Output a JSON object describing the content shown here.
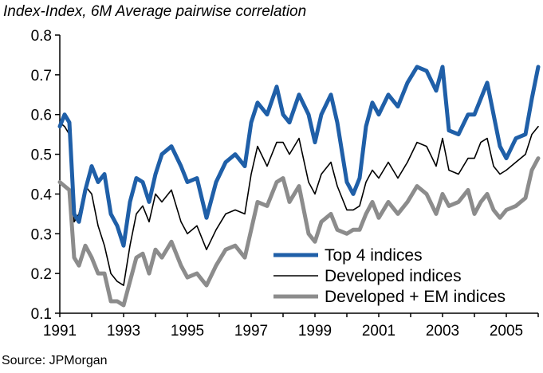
{
  "chart_data": {
    "type": "line",
    "title": "Index-Index, 6M Average pairwise correlation",
    "source": "Source: JPMorgan",
    "xlabel": "",
    "ylabel": "",
    "xlim": [
      1991.0,
      2006.0
    ],
    "ylim": [
      0.1,
      0.8
    ],
    "x_ticks": [
      "1991",
      "1993",
      "1995",
      "1997",
      "1999",
      "2001",
      "2003",
      "2005"
    ],
    "y_ticks": [
      "0.8",
      "0.7",
      "0.6",
      "0.5",
      "0.4",
      "0.3",
      "0.2",
      "0.1"
    ],
    "legend_position": "bottom-right",
    "grid": false,
    "series": [
      {
        "name": "Top 4 indices",
        "color": "#1f5fa8",
        "x": [
          1991.0,
          1991.15,
          1991.3,
          1991.45,
          1991.6,
          1991.8,
          1992.0,
          1992.2,
          1992.4,
          1992.6,
          1992.8,
          1993.0,
          1993.2,
          1993.4,
          1993.6,
          1993.8,
          1994.0,
          1994.2,
          1994.5,
          1994.8,
          1995.0,
          1995.3,
          1995.6,
          1995.9,
          1996.2,
          1996.5,
          1996.8,
          1997.0,
          1997.2,
          1997.5,
          1997.8,
          1998.0,
          1998.2,
          1998.5,
          1998.8,
          1999.0,
          1999.2,
          1999.5,
          1999.7,
          2000.0,
          2000.2,
          2000.4,
          2000.6,
          2000.8,
          2001.0,
          2001.3,
          2001.6,
          2001.9,
          2002.2,
          2002.5,
          2002.8,
          2003.0,
          2003.2,
          2003.5,
          2003.8,
          2004.0,
          2004.2,
          2004.4,
          2004.6,
          2004.8,
          2005.0,
          2005.3,
          2005.6,
          2005.8,
          2006.0
        ],
        "values": [
          0.57,
          0.6,
          0.58,
          0.35,
          0.33,
          0.41,
          0.47,
          0.43,
          0.45,
          0.35,
          0.32,
          0.27,
          0.38,
          0.44,
          0.43,
          0.38,
          0.45,
          0.5,
          0.52,
          0.47,
          0.43,
          0.44,
          0.34,
          0.43,
          0.48,
          0.5,
          0.47,
          0.58,
          0.63,
          0.6,
          0.67,
          0.6,
          0.58,
          0.65,
          0.6,
          0.53,
          0.6,
          0.65,
          0.58,
          0.43,
          0.4,
          0.44,
          0.57,
          0.63,
          0.6,
          0.65,
          0.62,
          0.68,
          0.72,
          0.71,
          0.66,
          0.72,
          0.56,
          0.55,
          0.6,
          0.6,
          0.64,
          0.68,
          0.6,
          0.52,
          0.49,
          0.54,
          0.55,
          0.64,
          0.72
        ]
      },
      {
        "name": "Developed indices",
        "color": "#000000",
        "x": [
          1991.0,
          1991.15,
          1991.3,
          1991.45,
          1991.6,
          1991.8,
          1992.0,
          1992.2,
          1992.4,
          1992.6,
          1992.8,
          1993.0,
          1993.2,
          1993.4,
          1993.6,
          1993.8,
          1994.0,
          1994.2,
          1994.5,
          1994.8,
          1995.0,
          1995.3,
          1995.6,
          1995.9,
          1996.2,
          1996.5,
          1996.8,
          1997.0,
          1997.2,
          1997.5,
          1997.8,
          1998.0,
          1998.2,
          1998.5,
          1998.8,
          1999.0,
          1999.2,
          1999.5,
          1999.7,
          2000.0,
          2000.2,
          2000.4,
          2000.6,
          2000.8,
          2001.0,
          2001.3,
          2001.6,
          2001.9,
          2002.2,
          2002.5,
          2002.8,
          2003.0,
          2003.2,
          2003.5,
          2003.8,
          2004.0,
          2004.2,
          2004.4,
          2004.6,
          2004.8,
          2005.0,
          2005.3,
          2005.6,
          2005.8,
          2006.0
        ],
        "values": [
          0.58,
          0.57,
          0.55,
          0.33,
          0.35,
          0.42,
          0.4,
          0.32,
          0.27,
          0.2,
          0.18,
          0.17,
          0.27,
          0.35,
          0.37,
          0.33,
          0.4,
          0.38,
          0.41,
          0.33,
          0.3,
          0.32,
          0.26,
          0.31,
          0.35,
          0.36,
          0.35,
          0.45,
          0.52,
          0.47,
          0.53,
          0.53,
          0.5,
          0.54,
          0.43,
          0.4,
          0.45,
          0.48,
          0.42,
          0.36,
          0.36,
          0.37,
          0.43,
          0.46,
          0.44,
          0.48,
          0.44,
          0.48,
          0.53,
          0.52,
          0.47,
          0.54,
          0.46,
          0.45,
          0.49,
          0.49,
          0.53,
          0.54,
          0.47,
          0.45,
          0.46,
          0.48,
          0.5,
          0.55,
          0.57
        ]
      },
      {
        "name": "Developed + EM indices",
        "color": "#8c8c8c",
        "x": [
          1991.0,
          1991.15,
          1991.3,
          1991.45,
          1991.6,
          1991.8,
          1992.0,
          1992.2,
          1992.4,
          1992.6,
          1992.8,
          1993.0,
          1993.2,
          1993.4,
          1993.6,
          1993.8,
          1994.0,
          1994.2,
          1994.5,
          1994.8,
          1995.0,
          1995.3,
          1995.6,
          1995.9,
          1996.2,
          1996.5,
          1996.8,
          1997.0,
          1997.2,
          1997.5,
          1997.8,
          1998.0,
          1998.2,
          1998.5,
          1998.8,
          1999.0,
          1999.2,
          1999.5,
          1999.7,
          2000.0,
          2000.2,
          2000.4,
          2000.6,
          2000.8,
          2001.0,
          2001.3,
          2001.6,
          2001.9,
          2002.2,
          2002.5,
          2002.8,
          2003.0,
          2003.2,
          2003.5,
          2003.8,
          2004.0,
          2004.2,
          2004.4,
          2004.6,
          2004.8,
          2005.0,
          2005.3,
          2005.6,
          2005.8,
          2006.0
        ],
        "values": [
          0.43,
          0.42,
          0.41,
          0.24,
          0.22,
          0.27,
          0.24,
          0.2,
          0.2,
          0.13,
          0.13,
          0.12,
          0.18,
          0.24,
          0.25,
          0.2,
          0.26,
          0.24,
          0.28,
          0.22,
          0.19,
          0.2,
          0.17,
          0.22,
          0.26,
          0.27,
          0.24,
          0.31,
          0.38,
          0.37,
          0.43,
          0.44,
          0.38,
          0.42,
          0.3,
          0.28,
          0.33,
          0.35,
          0.31,
          0.3,
          0.31,
          0.31,
          0.35,
          0.38,
          0.34,
          0.38,
          0.35,
          0.38,
          0.42,
          0.4,
          0.35,
          0.4,
          0.37,
          0.38,
          0.41,
          0.35,
          0.38,
          0.4,
          0.36,
          0.34,
          0.36,
          0.37,
          0.39,
          0.46,
          0.49
        ]
      }
    ]
  }
}
